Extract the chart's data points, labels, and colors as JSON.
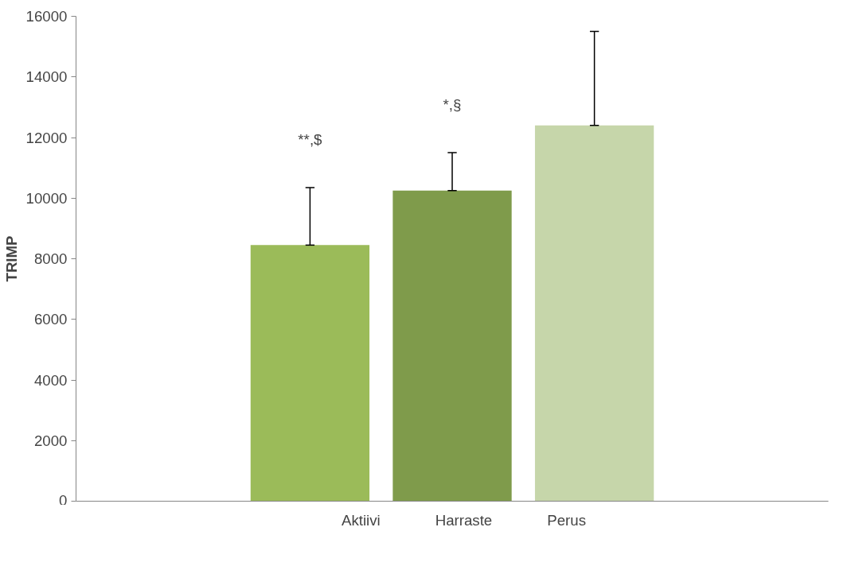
{
  "chart_data": {
    "type": "bar",
    "ylabel": "TRIMP",
    "categories": [
      null
    ],
    "series": [
      {
        "name": "Aktiivi",
        "color": "#9bbb59",
        "values": [
          8450
        ],
        "errors": [
          [
            8450,
            10350
          ]
        ]
      },
      {
        "name": "Harraste",
        "color": "#7f9b4b",
        "values": [
          10250
        ],
        "errors": [
          [
            10250,
            11500
          ]
        ]
      },
      {
        "name": "Perus",
        "color": "#c6d6aa",
        "values": [
          12400
        ],
        "errors": [
          [
            12400,
            15500
          ]
        ]
      }
    ],
    "annotations": [
      "**,$",
      "*,§"
    ],
    "ylim": [
      0,
      16000
    ],
    "yticks": [
      0,
      2000,
      4000,
      6000,
      8000,
      10000,
      12000,
      14000,
      16000
    ],
    "tick_labels": "y",
    "grid": false,
    "legend": "bottom"
  }
}
